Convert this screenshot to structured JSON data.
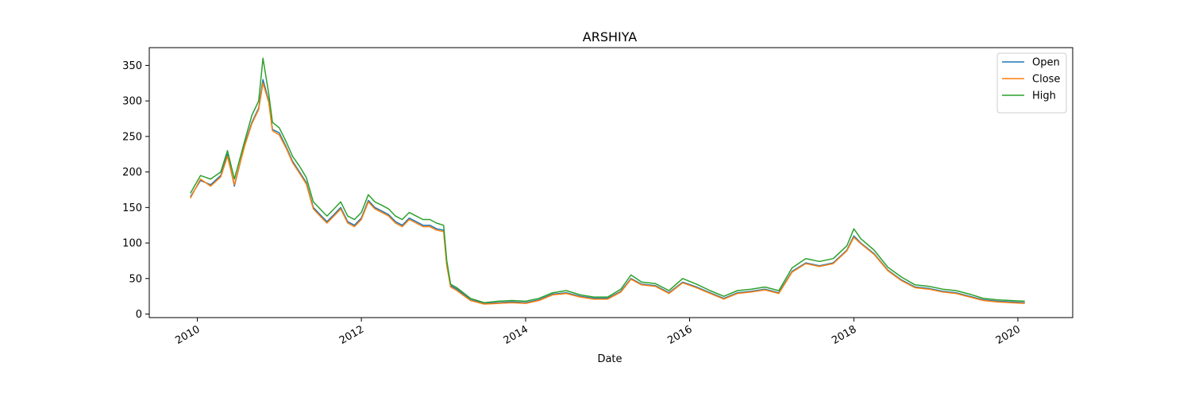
{
  "chart_data": {
    "type": "line",
    "title": "ARSHIYA",
    "xlabel": "Date",
    "ylabel": "",
    "xlim": [
      "2009-06-01",
      "2020-09-01"
    ],
    "ylim": [
      -5,
      375
    ],
    "x_ticks": [
      "2010",
      "2012",
      "2014",
      "2016",
      "2018",
      "2020"
    ],
    "y_ticks": [
      0,
      50,
      100,
      150,
      200,
      250,
      300,
      350
    ],
    "legend_position": "top-right",
    "grid": false,
    "x": [
      "2009-12-01",
      "2010-01-15",
      "2010-03-01",
      "2010-04-15",
      "2010-05-15",
      "2010-06-15",
      "2010-08-01",
      "2010-09-01",
      "2010-10-01",
      "2010-10-20",
      "2010-11-15",
      "2010-12-01",
      "2011-01-01",
      "2011-02-01",
      "2011-03-01",
      "2011-04-01",
      "2011-05-01",
      "2011-06-01",
      "2011-07-01",
      "2011-08-01",
      "2011-09-01",
      "2011-10-01",
      "2011-11-01",
      "2011-12-01",
      "2012-01-01",
      "2012-02-01",
      "2012-03-01",
      "2012-04-01",
      "2012-05-01",
      "2012-06-01",
      "2012-07-01",
      "2012-08-01",
      "2012-09-01",
      "2012-10-01",
      "2012-11-01",
      "2012-12-01",
      "2013-01-01",
      "2013-01-15",
      "2013-02-01",
      "2013-03-01",
      "2013-05-01",
      "2013-07-01",
      "2013-09-01",
      "2013-11-01",
      "2014-01-01",
      "2014-03-01",
      "2014-05-01",
      "2014-07-01",
      "2014-09-01",
      "2014-11-01",
      "2015-01-01",
      "2015-03-01",
      "2015-04-15",
      "2015-06-01",
      "2015-08-01",
      "2015-10-01",
      "2015-12-01",
      "2016-02-01",
      "2016-04-01",
      "2016-06-01",
      "2016-08-01",
      "2016-10-01",
      "2016-12-01",
      "2017-02-01",
      "2017-04-01",
      "2017-06-01",
      "2017-08-01",
      "2017-10-01",
      "2017-12-01",
      "2018-01-01",
      "2018-02-01",
      "2018-04-01",
      "2018-06-01",
      "2018-08-01",
      "2018-10-01",
      "2018-12-01",
      "2019-02-01",
      "2019-04-01",
      "2019-06-01",
      "2019-08-01",
      "2019-10-01",
      "2019-12-01",
      "2020-02-01"
    ],
    "series": [
      {
        "name": "Open",
        "color": "#1f77b4",
        "values": [
          165,
          188,
          182,
          195,
          225,
          180,
          240,
          270,
          290,
          330,
          300,
          260,
          255,
          235,
          215,
          200,
          185,
          150,
          140,
          130,
          140,
          150,
          130,
          125,
          135,
          160,
          150,
          145,
          140,
          130,
          125,
          135,
          130,
          125,
          125,
          120,
          118,
          70,
          40,
          35,
          20,
          15,
          16,
          17,
          16,
          20,
          28,
          30,
          25,
          22,
          22,
          32,
          50,
          42,
          40,
          30,
          45,
          38,
          30,
          22,
          30,
          32,
          35,
          30,
          60,
          72,
          68,
          72,
          90,
          110,
          100,
          85,
          62,
          48,
          38,
          36,
          32,
          30,
          25,
          20,
          18,
          17,
          16
        ]
      },
      {
        "name": "Close",
        "color": "#ff7f0e",
        "values": [
          163,
          190,
          180,
          193,
          222,
          182,
          238,
          268,
          288,
          325,
          298,
          258,
          252,
          233,
          213,
          198,
          183,
          148,
          138,
          128,
          138,
          148,
          128,
          123,
          133,
          158,
          148,
          143,
          138,
          128,
          123,
          133,
          128,
          123,
          123,
          118,
          116,
          68,
          38,
          33,
          19,
          14,
          15,
          16,
          15,
          19,
          27,
          29,
          24,
          21,
          21,
          31,
          49,
          41,
          39,
          29,
          44,
          37,
          29,
          21,
          29,
          31,
          34,
          29,
          59,
          71,
          67,
          71,
          89,
          108,
          99,
          84,
          61,
          47,
          37,
          35,
          31,
          29,
          24,
          19,
          17,
          16,
          15
        ]
      },
      {
        "name": "High",
        "color": "#2ca02c",
        "values": [
          170,
          195,
          190,
          200,
          230,
          190,
          245,
          280,
          300,
          360,
          310,
          270,
          262,
          242,
          222,
          208,
          192,
          158,
          148,
          138,
          148,
          158,
          138,
          133,
          143,
          168,
          158,
          153,
          148,
          138,
          133,
          143,
          138,
          133,
          133,
          128,
          125,
          75,
          42,
          37,
          22,
          16,
          18,
          19,
          18,
          22,
          30,
          33,
          27,
          24,
          24,
          35,
          55,
          45,
          43,
          33,
          50,
          42,
          33,
          25,
          33,
          35,
          38,
          33,
          65,
          78,
          74,
          78,
          96,
          120,
          106,
          90,
          66,
          52,
          41,
          39,
          35,
          33,
          28,
          22,
          20,
          19,
          18
        ]
      }
    ]
  }
}
